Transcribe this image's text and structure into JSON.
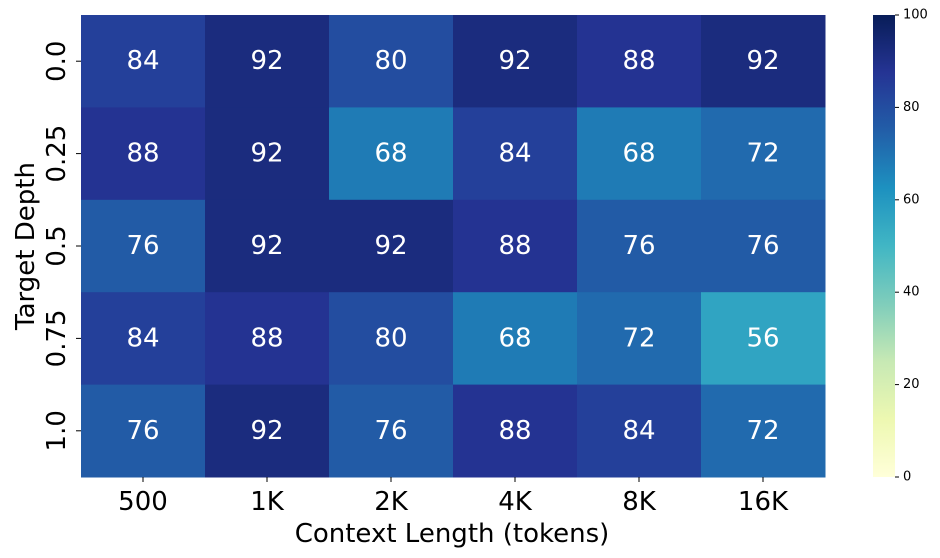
{
  "chart_data": {
    "type": "heatmap",
    "title": "",
    "xlabel": "Context Length (tokens)",
    "ylabel": "Target Depth",
    "x_categories": [
      "500",
      "1K",
      "2K",
      "4K",
      "8K",
      "16K"
    ],
    "y_categories": [
      "0.0",
      "0.25",
      "0.5",
      "0.75",
      "1.0"
    ],
    "values": [
      [
        84,
        92,
        80,
        92,
        88,
        92
      ],
      [
        88,
        92,
        68,
        84,
        68,
        72
      ],
      [
        76,
        92,
        92,
        88,
        76,
        76
      ],
      [
        84,
        88,
        80,
        68,
        72,
        56
      ],
      [
        76,
        92,
        76,
        88,
        84,
        72
      ]
    ],
    "colorbar": {
      "range": [
        0,
        100
      ],
      "ticks": [
        "0",
        "20",
        "40",
        "60",
        "80",
        "100"
      ],
      "colormap": "YlGnBu"
    },
    "legend": "colorbar-right"
  }
}
